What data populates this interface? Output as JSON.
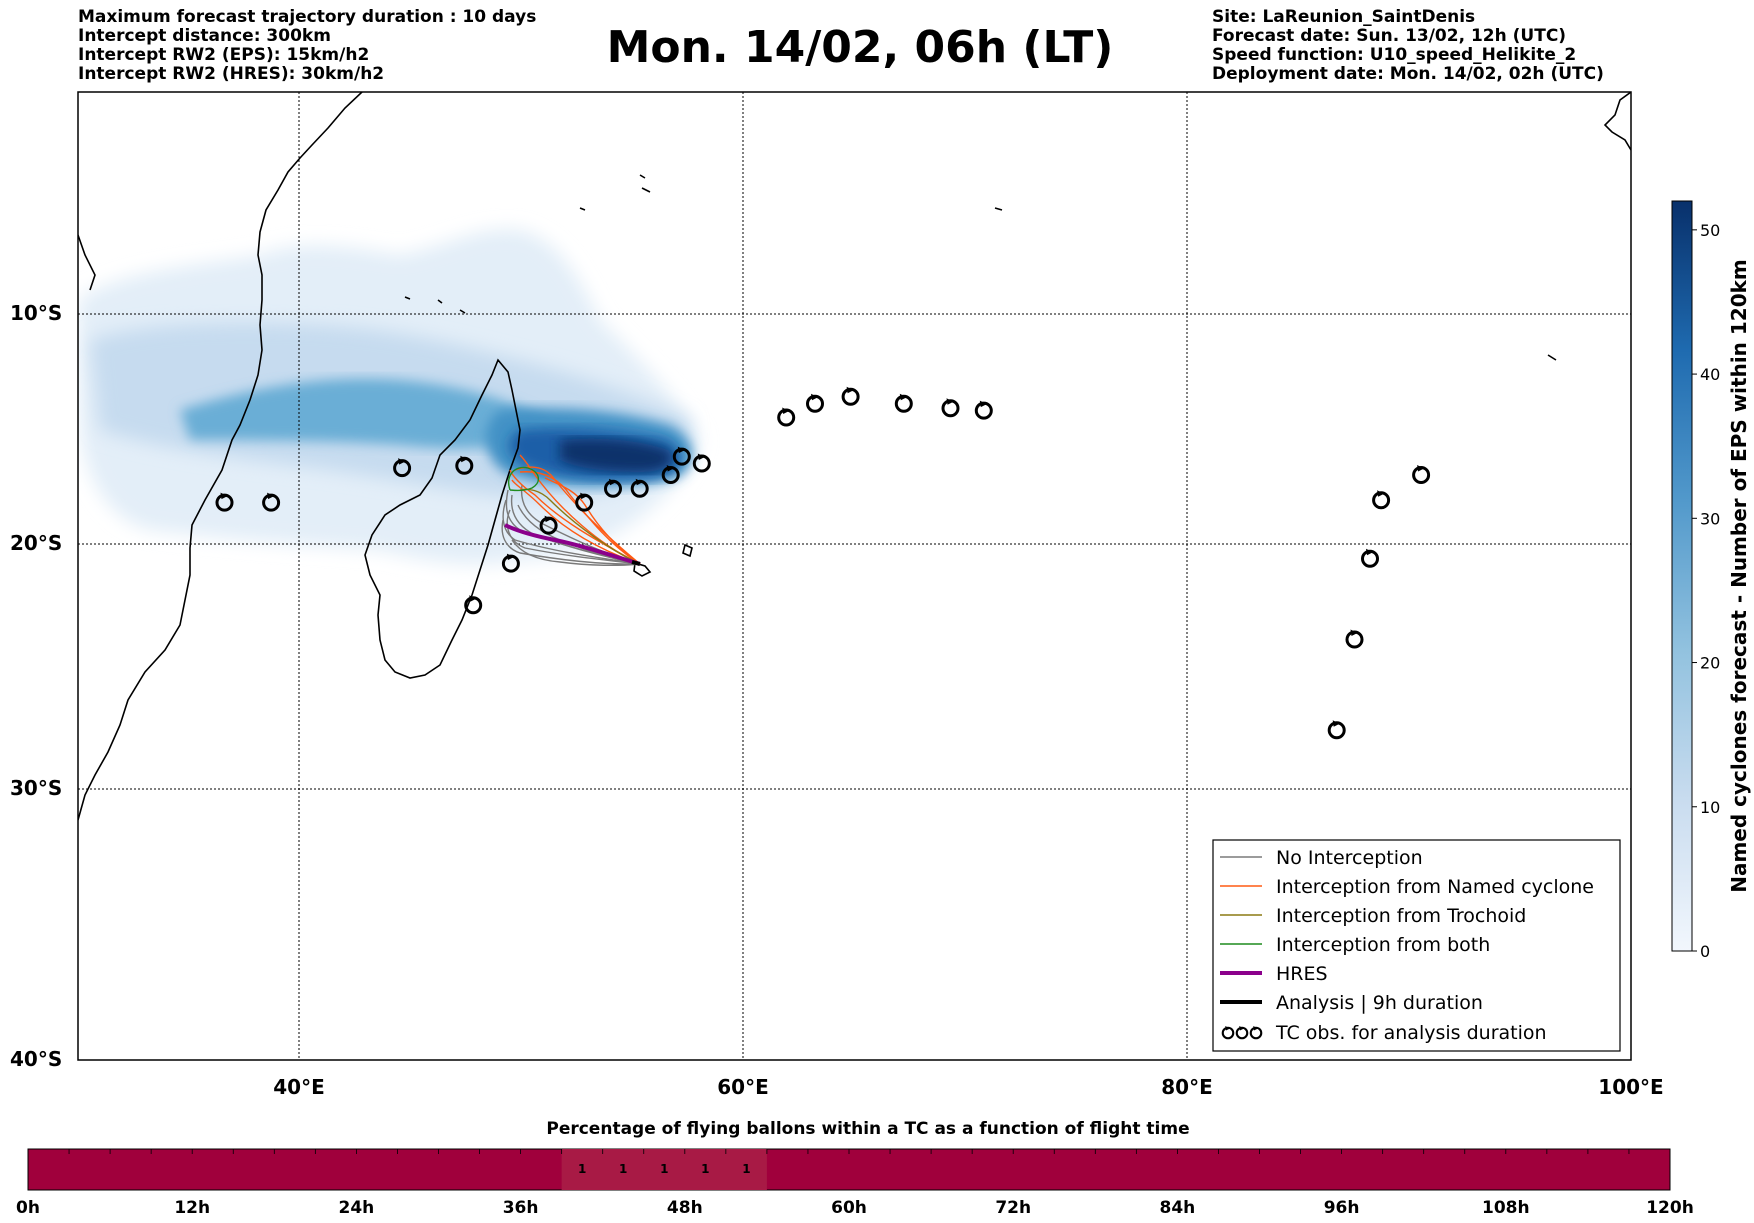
{
  "header": {
    "title": "Mon. 14/02, 06h (LT)",
    "left_lines": [
      "Maximum forecast trajectory duration : 10 days",
      "Intercept distance: 300km",
      "Intercept RW2 (EPS):  15km/h2",
      "Intercept RW2 (HRES): 30km/h2"
    ],
    "right_lines": [
      "Site: LaReunion_SaintDenis",
      "Forecast date: Sun. 13/02, 12h (UTC)",
      "Speed function: U10_speed_Helikite_2",
      "Deployment date: Mon. 14/02, 02h (UTC)"
    ]
  },
  "map": {
    "lat_labels": [
      "10°S",
      "20°S",
      "30°S",
      "40°S"
    ],
    "lon_labels": [
      "40°E",
      "60°E",
      "80°E",
      "100°E"
    ],
    "lon_range": [
      30,
      100
    ],
    "lat_range": [
      -40,
      -0.8
    ],
    "tc_observations": [
      [
        36.6,
        -18.2
      ],
      [
        38.7,
        -18.2
      ],
      [
        44.6,
        -16.7
      ],
      [
        47.4,
        -16.6
      ],
      [
        49.5,
        -20.8
      ],
      [
        47.8,
        -22.5
      ],
      [
        51.2,
        -19.2
      ],
      [
        52.8,
        -18.2
      ],
      [
        54.1,
        -17.6
      ],
      [
        55.3,
        -17.6
      ],
      [
        56.7,
        -17.0
      ],
      [
        57.2,
        -16.2
      ],
      [
        58.1,
        -16.5
      ],
      [
        61.9,
        -14.5
      ],
      [
        63.2,
        -13.9
      ],
      [
        64.8,
        -13.6
      ],
      [
        67.2,
        -13.9
      ],
      [
        69.3,
        -14.1
      ],
      [
        70.8,
        -14.2
      ],
      [
        86.7,
        -27.6
      ],
      [
        87.5,
        -23.9
      ],
      [
        88.2,
        -20.6
      ],
      [
        88.7,
        -18.1
      ],
      [
        90.5,
        -17.0
      ]
    ]
  },
  "colorbar": {
    "label": "Named cyclones forecast - Number of EPS within 120km",
    "ticks": [
      "0",
      "10",
      "20",
      "30",
      "40",
      "50"
    ],
    "range": [
      0,
      52
    ],
    "color_low": "#f2f7fd",
    "color_high": "#08306b"
  },
  "legend": {
    "items": [
      {
        "label": "No Interception",
        "color": "#7a7a7a",
        "width": 1.5
      },
      {
        "label": "Interception from Named cyclone",
        "color": "#ff5a14",
        "width": 1.5
      },
      {
        "label": "Interception from Trochoid",
        "color": "#8c7a14",
        "width": 1.5
      },
      {
        "label": "Interception from both",
        "color": "#1f8c1f",
        "width": 1.5
      },
      {
        "label": "HRES",
        "color": "#8b008b",
        "width": 4
      },
      {
        "label": "Analysis | 9h duration",
        "color": "#000000",
        "width": 4
      },
      {
        "label": "TC obs. for analysis duration",
        "color": "#000000",
        "width": 0
      }
    ]
  },
  "chart_data": {
    "type": "heatmap",
    "title": "Percentage of flying ballons within a TC as a function of flight time",
    "x_ticks": [
      "0h",
      "12h",
      "24h",
      "36h",
      "48h",
      "60h",
      "72h",
      "84h",
      "96h",
      "108h",
      "120h"
    ],
    "x_range_hours": [
      0,
      120
    ],
    "cell_hours": 3,
    "bar_color": "#a0003c",
    "highlight_color": "#a81a45",
    "highlight_hours": [
      39,
      54
    ],
    "values": [
      {
        "hour": 40.5,
        "label": "1"
      },
      {
        "hour": 43.5,
        "label": "1"
      },
      {
        "hour": 46.5,
        "label": "1"
      },
      {
        "hour": 49.5,
        "label": "1"
      },
      {
        "hour": 52.5,
        "label": "1"
      }
    ]
  }
}
